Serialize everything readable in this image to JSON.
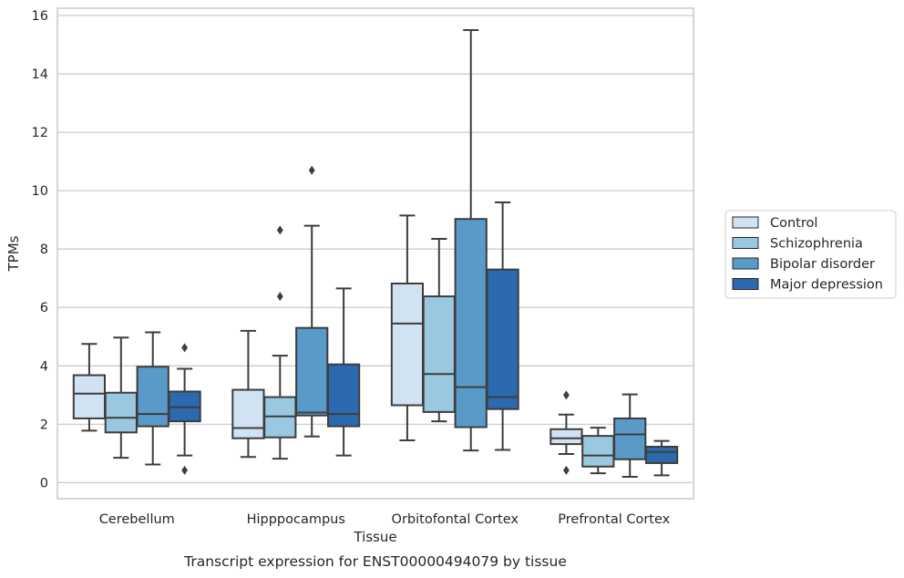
{
  "chart_data": {
    "type": "box",
    "caption": "Transcript expression for ENST00000494079 by tissue",
    "xlabel": "Tissue",
    "ylabel": "TPMs",
    "ylim": [
      -0.55,
      16.25
    ],
    "yticks": [
      0,
      2,
      4,
      6,
      8,
      10,
      12,
      14,
      16
    ],
    "grid": true,
    "legend_position": "right",
    "categories": [
      "Cerebellum",
      "Hipppocampus",
      "Orbitofontal Cortex",
      "Prefrontal Cortex"
    ],
    "series": [
      {
        "name": "Control",
        "color": "#d1e2f2",
        "boxes": [
          {
            "whislo": 1.78,
            "q1": 2.2,
            "med": 3.05,
            "q3": 3.68,
            "whishi": 4.75,
            "fliers": []
          },
          {
            "whislo": 0.88,
            "q1": 1.52,
            "med": 1.87,
            "q3": 3.18,
            "whishi": 5.2,
            "fliers": []
          },
          {
            "whislo": 1.45,
            "q1": 2.65,
            "med": 5.45,
            "q3": 6.82,
            "whishi": 9.15,
            "fliers": []
          },
          {
            "whislo": 0.98,
            "q1": 1.32,
            "med": 1.52,
            "q3": 1.83,
            "whishi": 2.33,
            "fliers": [
              3.0,
              0.42
            ]
          }
        ]
      },
      {
        "name": "Schizophrenia",
        "color": "#9ac8e0",
        "boxes": [
          {
            "whislo": 0.85,
            "q1": 1.72,
            "med": 2.22,
            "q3": 3.08,
            "whishi": 4.97,
            "fliers": []
          },
          {
            "whislo": 0.82,
            "q1": 1.55,
            "med": 2.27,
            "q3": 2.93,
            "whishi": 4.35,
            "fliers": [
              8.65,
              6.38
            ]
          },
          {
            "whislo": 2.1,
            "q1": 2.42,
            "med": 3.72,
            "q3": 6.38,
            "whishi": 8.35,
            "fliers": []
          },
          {
            "whislo": 0.32,
            "q1": 0.55,
            "med": 0.93,
            "q3": 1.6,
            "whishi": 1.88,
            "fliers": []
          }
        ]
      },
      {
        "name": "Bipolar disorder",
        "color": "#5a9ac9",
        "boxes": [
          {
            "whislo": 0.62,
            "q1": 1.93,
            "med": 2.35,
            "q3": 3.97,
            "whishi": 5.15,
            "fliers": []
          },
          {
            "whislo": 1.58,
            "q1": 2.3,
            "med": 2.4,
            "q3": 5.3,
            "whishi": 8.8,
            "fliers": [
              10.7
            ]
          },
          {
            "whislo": 1.1,
            "q1": 1.9,
            "med": 3.27,
            "q3": 9.03,
            "whishi": 15.5,
            "fliers": []
          },
          {
            "whislo": 0.2,
            "q1": 0.8,
            "med": 1.65,
            "q3": 2.2,
            "whishi": 3.02,
            "fliers": []
          }
        ]
      },
      {
        "name": "Major depression",
        "color": "#2b6aae",
        "boxes": [
          {
            "whislo": 0.93,
            "q1": 2.1,
            "med": 2.58,
            "q3": 3.12,
            "whishi": 3.9,
            "fliers": [
              4.62,
              0.42
            ]
          },
          {
            "whislo": 0.93,
            "q1": 1.93,
            "med": 2.35,
            "q3": 4.05,
            "whishi": 6.65,
            "fliers": []
          },
          {
            "whislo": 1.12,
            "q1": 2.52,
            "med": 2.93,
            "q3": 7.3,
            "whishi": 9.6,
            "fliers": []
          },
          {
            "whislo": 0.25,
            "q1": 0.67,
            "med": 1.05,
            "q3": 1.23,
            "whishi": 1.43,
            "fliers": []
          }
        ]
      }
    ]
  }
}
